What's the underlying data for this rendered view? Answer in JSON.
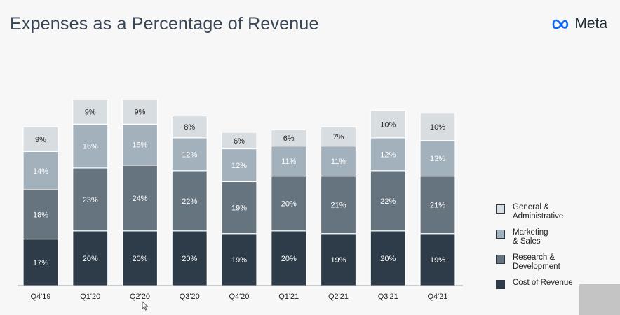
{
  "slide": {
    "title": "Expenses as a Percentage of Revenue"
  },
  "brand": {
    "name": "Meta",
    "color": "#0866ff"
  },
  "chart_data": {
    "type": "bar",
    "stacked": true,
    "title": "Expenses as a Percentage of Revenue",
    "categories": [
      "Q4'19",
      "Q1'20",
      "Q2'20",
      "Q3'20",
      "Q4'20",
      "Q1'21",
      "Q2'21",
      "Q3'21",
      "Q4'21"
    ],
    "series": [
      {
        "name": "Cost of Revenue",
        "color": "#2d3c48",
        "label_color": "#ffffff",
        "values": [
          17,
          20,
          20,
          20,
          19,
          20,
          19,
          20,
          19
        ]
      },
      {
        "name": "Research & Development",
        "color": "#66747f",
        "label_color": "#ffffff",
        "values": [
          18,
          23,
          24,
          22,
          19,
          20,
          21,
          22,
          21
        ]
      },
      {
        "name": "Marketing & Sales",
        "color": "#a3b1bc",
        "label_color": "#ffffff",
        "values": [
          14,
          16,
          15,
          12,
          12,
          11,
          11,
          12,
          13
        ]
      },
      {
        "name": "General & Administrative",
        "color": "#d8dde2",
        "label_color": "#2a2a2a",
        "values": [
          9,
          9,
          9,
          8,
          6,
          6,
          7,
          10,
          10
        ]
      }
    ],
    "value_suffix": "%",
    "xlabel": "",
    "ylabel": "",
    "ylim": [
      0,
      70
    ],
    "grid": false,
    "legend_position": "right",
    "legend": [
      {
        "label": "General &\nAdministrative",
        "color": "#d8dde2"
      },
      {
        "label": "Marketing\n& Sales",
        "color": "#a3b1bc"
      },
      {
        "label": "Research &\nDevelopment",
        "color": "#66747f"
      },
      {
        "label": "Cost of Revenue",
        "color": "#2d3c48"
      }
    ]
  }
}
